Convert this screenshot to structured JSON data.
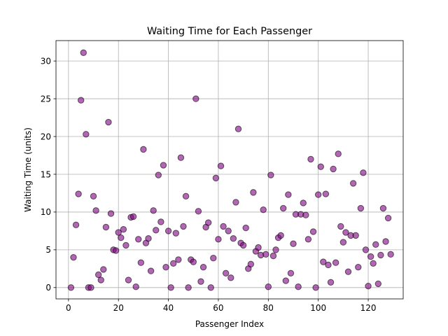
{
  "chart_data": {
    "type": "scatter",
    "title": "Waiting Time for Each Passenger",
    "xlabel": "Passenger Index",
    "ylabel": "Waiting Time (units)",
    "xlim": [
      -5,
      134
    ],
    "ylim": [
      -1.5,
      32.7
    ],
    "xticks": [
      0,
      20,
      40,
      60,
      80,
      100,
      120
    ],
    "yticks": [
      0,
      5,
      10,
      15,
      20,
      25,
      30
    ],
    "grid": true,
    "marker_color": "#800080",
    "marker_edge_color": "#000000",
    "marker_alpha": 0.6,
    "x": [
      1,
      2,
      3,
      4,
      5,
      6,
      7,
      8,
      9,
      10,
      11,
      12,
      13,
      14,
      15,
      16,
      17,
      18,
      19,
      20,
      21,
      22,
      23,
      24,
      25,
      26,
      27,
      28,
      29,
      30,
      31,
      32,
      33,
      34,
      35,
      36,
      37,
      38,
      39,
      40,
      41,
      42,
      43,
      44,
      45,
      46,
      47,
      48,
      49,
      50,
      51,
      52,
      53,
      54,
      55,
      56,
      57,
      58,
      59,
      60,
      61,
      62,
      63,
      64,
      65,
      66,
      67,
      68,
      69,
      70,
      71,
      72,
      73,
      74,
      75,
      76,
      77,
      78,
      79,
      80,
      81,
      82,
      83,
      84,
      85,
      86,
      87,
      88,
      89,
      90,
      91,
      92,
      93,
      94,
      95,
      96,
      97,
      98,
      99,
      100,
      101,
      102,
      103,
      104,
      105,
      106,
      107,
      108,
      109,
      110,
      111,
      112,
      113,
      114,
      115,
      116,
      117,
      118,
      119,
      120,
      121,
      122,
      123,
      124,
      125,
      126,
      127,
      128,
      129
    ],
    "y": [
      0,
      4,
      8.3,
      12.4,
      24.8,
      31.1,
      20.3,
      0,
      0,
      12.1,
      10.2,
      1.7,
      1,
      2.4,
      8,
      21.9,
      9.8,
      5,
      4.9,
      7.3,
      6.6,
      7.7,
      5.6,
      1,
      9.3,
      9.4,
      0.1,
      6.4,
      3.3,
      18.3,
      5.9,
      6.5,
      2.2,
      10.2,
      7.6,
      14.9,
      8.7,
      16.2,
      2.7,
      7.5,
      0,
      3.2,
      7.2,
      3.7,
      17.2,
      8.1,
      12.1,
      0,
      3.7,
      3.4,
      25,
      10.1,
      0.8,
      2.7,
      8,
      8.6,
      0,
      3.9,
      14.5,
      6.4,
      16.1,
      8.1,
      1.9,
      7.5,
      1.3,
      6.5,
      11.3,
      21,
      5.9,
      5.6,
      7.9,
      2.5,
      3.1,
      12.6,
      4.8,
      5.3,
      4.3,
      10.3,
      4.4,
      0.1,
      14.9,
      4.2,
      5,
      6.6,
      6.9,
      10.5,
      0.9,
      12.3,
      1.9,
      5.8,
      9.7,
      0.1,
      9.7,
      11.2,
      9.6,
      6.4,
      17,
      7.4,
      0,
      12.3,
      16,
      3.4,
      12.4,
      3,
      0.7,
      15.7,
      3.3,
      17.7,
      8.1,
      6,
      7.3,
      2.1,
      6.9,
      13.8,
      6.9,
      2.7,
      10.5,
      15.2,
      5,
      0.2,
      4.1,
      3.2,
      5.7,
      0.5,
      4.3,
      10.5,
      6.1,
      9.2,
      4.4
    ]
  }
}
